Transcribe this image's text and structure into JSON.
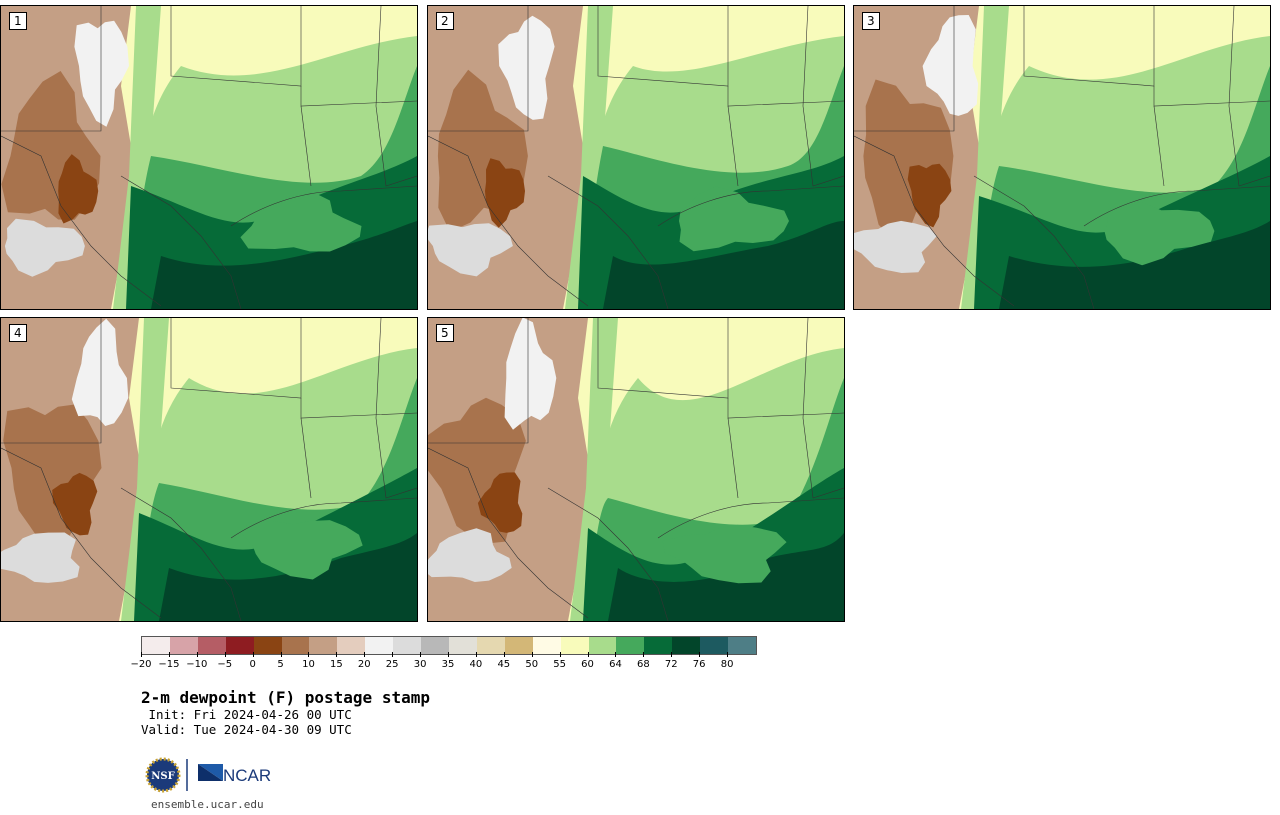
{
  "panels": [
    {
      "label": "1",
      "variant": 0
    },
    {
      "label": "2",
      "variant": 1
    },
    {
      "label": "3",
      "variant": 2
    },
    {
      "label": "4",
      "variant": 3
    },
    {
      "label": "5",
      "variant": 4
    }
  ],
  "colorbar": {
    "colors": [
      "#f4ecec",
      "#d7a3a8",
      "#b55d65",
      "#8e1c21",
      "#8a4413",
      "#a8734d",
      "#c49f85",
      "#e4cdbe",
      "#f2f2f2",
      "#dcdcdc",
      "#b8b8b8",
      "#e2e0d8",
      "#e5d8b0",
      "#d3b777",
      "#fffbe5",
      "#f8fbbb",
      "#a8dc8c",
      "#45a95c",
      "#066b38",
      "#02452a",
      "#1d5a60",
      "#4e7e86"
    ],
    "tick_labels": [
      "−20",
      "−15",
      "−10",
      "−5",
      "0",
      "5",
      "10",
      "15",
      "20",
      "25",
      "30",
      "35",
      "40",
      "45",
      "50",
      "55",
      "60",
      "64",
      "68",
      "72",
      "76",
      "80"
    ]
  },
  "title": "2-m dewpoint (F) postage stamp",
  "init_text": " Init: Fri 2024-04-26 00 UTC",
  "valid_text": "Valid: Tue 2024-04-30 09 UTC",
  "logo": {
    "left_text": "NSF",
    "right_text": "NCAR"
  },
  "site": "ensemble.ucar.edu"
}
